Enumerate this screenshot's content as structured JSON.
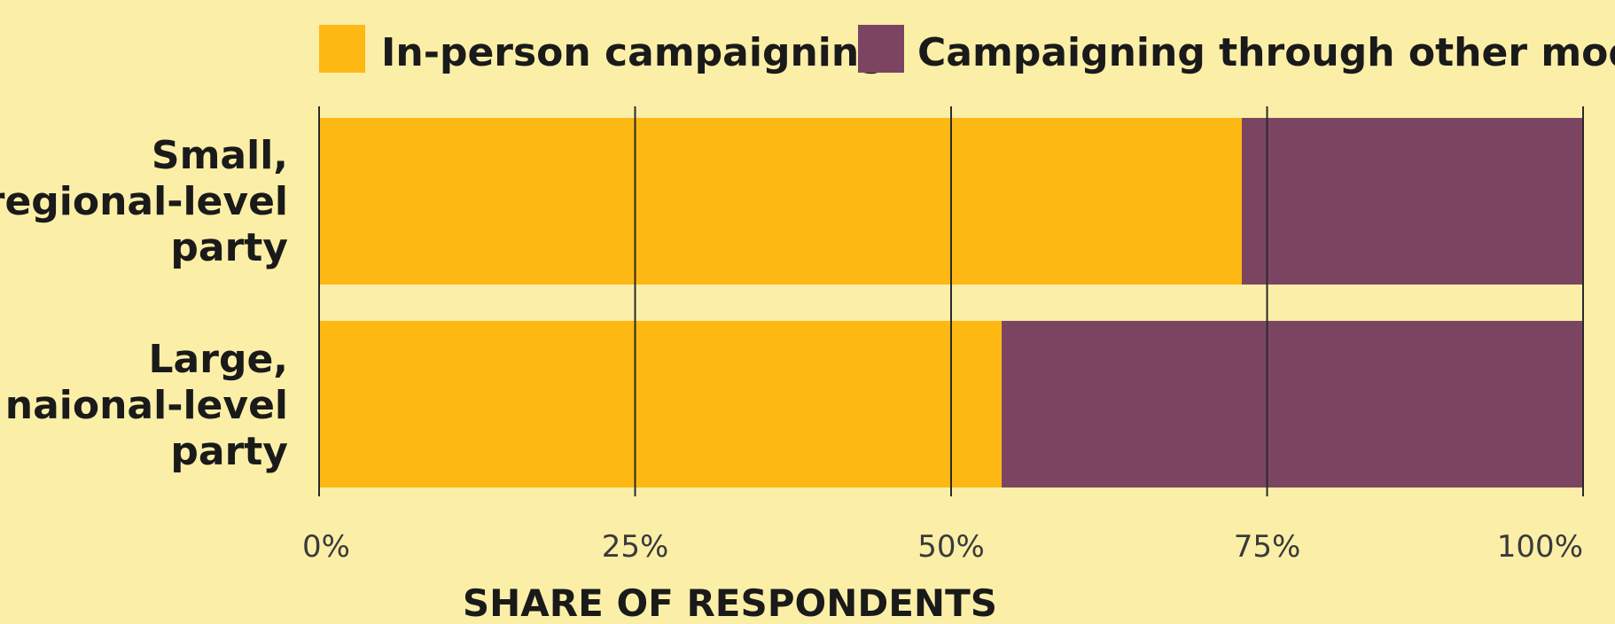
{
  "chart_data": {
    "type": "bar",
    "orientation": "horizontal",
    "stacked": true,
    "categories": [
      "Small, regional-level party",
      "Large, naional-level party"
    ],
    "category_lines": [
      [
        "Small,",
        "regional-level",
        "party"
      ],
      [
        "Large,",
        "naional-level",
        "party"
      ]
    ],
    "series": [
      {
        "name": "In-person campaigning",
        "color": "#fdb813",
        "values": [
          73,
          54
        ]
      },
      {
        "name": "Campaigning through other modes",
        "color": "#7b4562",
        "values": [
          27,
          46
        ]
      }
    ],
    "xlim": [
      0,
      100
    ],
    "xticks": [
      0,
      25,
      50,
      75,
      100
    ],
    "xtick_labels": [
      "0%",
      "25%",
      "50%",
      "75%",
      "100%"
    ],
    "xlabel": "SHARE OF RESPONDENTS",
    "grid": true,
    "legend_position": "top"
  },
  "colors": {
    "background": "#fbefa8",
    "gridline": "#2a2a2a"
  }
}
